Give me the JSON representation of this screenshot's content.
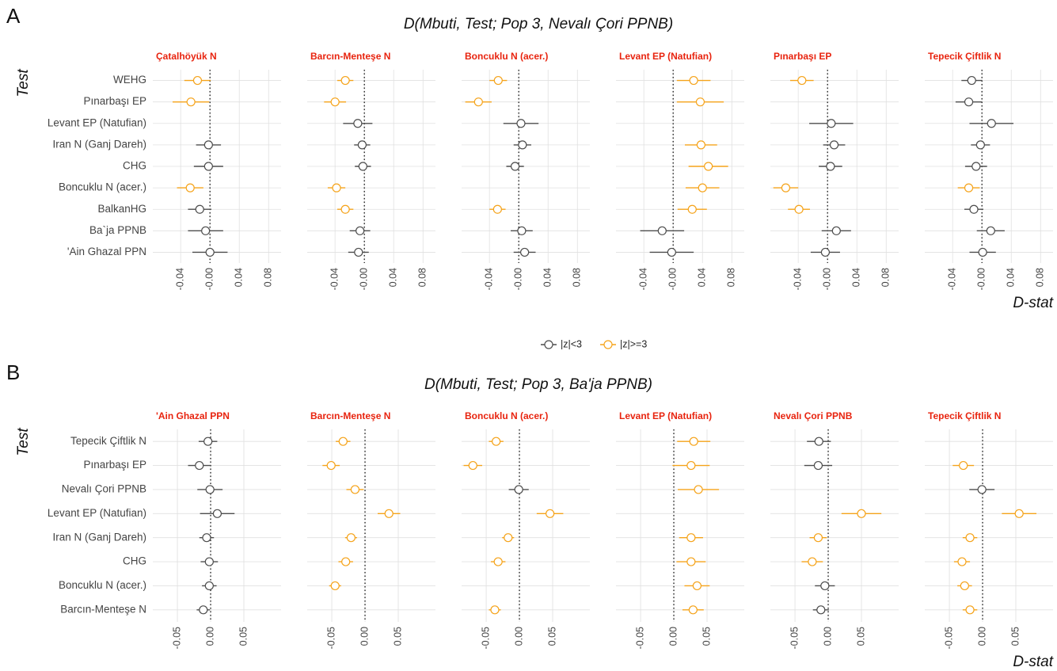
{
  "chart_data": [
    {
      "type": "dot-error",
      "panel_label": "A",
      "title": "D(Mbuti, Test; Pop 3, Nevalı Çori PPNB)",
      "y_label": "Test",
      "x_label": "D-stat",
      "categories": [
        "WEHG",
        "Pınarbaşı EP",
        "Levant EP (Natufian)",
        "Iran N (Ganj Dareh)",
        "CHG",
        "Boncuklu N (acer.)",
        "BalkanHG",
        "Ba`ja PPNB",
        "'Ain Ghazal PPN"
      ],
      "xlim": [
        -0.078,
        0.097
      ],
      "xticks": [
        -0.04,
        {
          "value": 0,
          "label": "-0.00"
        },
        0.04,
        0.08
      ],
      "reference_line": 0,
      "grid": true,
      "legend": [
        {
          "name": "|z|<3",
          "color": "#4d4d4d"
        },
        {
          "name": "|z|>=3",
          "color": "#f5a31a"
        }
      ],
      "facets": [
        {
          "title": "Çatalhöyük N",
          "values": [
            -0.017,
            -0.026,
            null,
            -0.002,
            -0.002,
            -0.027,
            -0.014,
            -0.006,
            0.0
          ],
          "errors": [
            0.018,
            0.025,
            null,
            0.017,
            0.02,
            0.018,
            0.016,
            0.024,
            0.024
          ],
          "significant": [
            true,
            true,
            null,
            false,
            false,
            true,
            false,
            false,
            false
          ]
        },
        {
          "title": "Barcın-Menteşe N",
          "values": [
            -0.026,
            -0.04,
            -0.009,
            -0.003,
            -0.002,
            -0.038,
            -0.026,
            -0.006,
            -0.008
          ],
          "errors": [
            0.011,
            0.015,
            0.02,
            0.011,
            0.011,
            0.012,
            0.011,
            0.014,
            0.014
          ],
          "significant": [
            true,
            true,
            false,
            false,
            false,
            true,
            true,
            false,
            false
          ]
        },
        {
          "title": "Boncuklu N (acer.)",
          "values": [
            -0.028,
            -0.055,
            0.003,
            0.005,
            -0.005,
            null,
            -0.029,
            0.004,
            0.008
          ],
          "errors": [
            0.012,
            0.018,
            0.024,
            0.012,
            0.012,
            null,
            0.011,
            0.015,
            0.015
          ],
          "significant": [
            true,
            true,
            false,
            false,
            false,
            null,
            true,
            false,
            false
          ]
        },
        {
          "title": "Levant EP (Natufian)",
          "values": [
            0.028,
            0.037,
            null,
            0.038,
            0.048,
            0.04,
            0.026,
            -0.015,
            -0.002
          ],
          "errors": [
            0.023,
            0.032,
            null,
            0.022,
            0.027,
            0.023,
            0.02,
            0.03,
            0.03
          ],
          "significant": [
            true,
            true,
            null,
            true,
            true,
            true,
            true,
            false,
            false
          ]
        },
        {
          "title": "Pınarbaşı EP",
          "values": [
            -0.035,
            null,
            0.005,
            0.009,
            0.004,
            -0.057,
            -0.039,
            0.012,
            -0.003
          ],
          "errors": [
            0.016,
            null,
            0.03,
            0.015,
            0.016,
            0.017,
            0.015,
            0.02,
            0.02
          ],
          "significant": [
            true,
            null,
            false,
            false,
            false,
            true,
            true,
            false,
            false
          ]
        },
        {
          "title": "Tepecik Çiftlik N",
          "values": [
            -0.014,
            -0.018,
            0.013,
            -0.002,
            -0.008,
            -0.018,
            -0.011,
            0.012,
            0.001
          ],
          "errors": [
            0.014,
            0.018,
            0.03,
            0.013,
            0.015,
            0.015,
            0.013,
            0.019,
            0.018
          ],
          "significant": [
            false,
            false,
            false,
            false,
            false,
            true,
            false,
            false,
            false
          ]
        }
      ]
    },
    {
      "type": "dot-error",
      "panel_label": "B",
      "title": "D(Mbuti, Test; Pop 3, Ba'ja PPNB)",
      "y_label": "Test",
      "x_label": "D-stat",
      "categories": [
        "Tepecik Çiftlik N",
        "Pınarbaşı EP",
        "Nevalı Çori PPNB",
        "Levant EP (Natufian)",
        "Iran N (Ganj Dareh)",
        "CHG",
        "Boncuklu N (acer.)",
        "Barcın-Menteşe N"
      ],
      "xlim": [
        -0.087,
        0.106
      ],
      "xticks": [
        -0.05,
        {
          "value": 0,
          "label": "0.00"
        },
        0.05
      ],
      "reference_line": 0,
      "grid": true,
      "facets": [
        {
          "title": "'Ain Ghazal PPN",
          "values": [
            -0.004,
            -0.017,
            -0.001,
            0.01,
            -0.006,
            -0.002,
            -0.002,
            -0.011
          ],
          "errors": [
            0.014,
            0.017,
            0.019,
            0.026,
            0.011,
            0.013,
            0.011,
            0.01
          ],
          "significant": [
            false,
            false,
            false,
            false,
            false,
            false,
            false,
            false
          ]
        },
        {
          "title": "Barcın-Menteşe N",
          "values": [
            -0.033,
            -0.051,
            -0.015,
            0.036,
            -0.021,
            -0.029,
            -0.045,
            null
          ],
          "errors": [
            0.011,
            0.013,
            0.013,
            0.017,
            0.009,
            0.011,
            0.009,
            null
          ],
          "significant": [
            true,
            true,
            true,
            true,
            true,
            true,
            true,
            null
          ]
        },
        {
          "title": "Boncuklu N (acer.)",
          "values": [
            -0.035,
            -0.07,
            -0.001,
            0.046,
            -0.017,
            -0.032,
            null,
            -0.037
          ],
          "errors": [
            0.011,
            0.014,
            0.015,
            0.02,
            0.009,
            0.011,
            null,
            0.009
          ],
          "significant": [
            true,
            true,
            false,
            true,
            true,
            true,
            null,
            true
          ]
        },
        {
          "title": "Levant EP (Natufian)",
          "values": [
            0.03,
            0.026,
            0.037,
            null,
            0.026,
            0.026,
            0.035,
            0.029
          ],
          "errors": [
            0.025,
            0.028,
            0.031,
            null,
            0.018,
            0.022,
            0.019,
            0.016
          ],
          "significant": [
            true,
            true,
            true,
            null,
            true,
            true,
            true,
            true
          ]
        },
        {
          "title": "Nevalı Çori PPNB",
          "values": [
            -0.014,
            -0.015,
            null,
            0.05,
            -0.015,
            -0.024,
            -0.005,
            -0.011
          ],
          "errors": [
            0.018,
            0.021,
            null,
            0.03,
            0.013,
            0.016,
            0.015,
            0.012
          ],
          "significant": [
            false,
            false,
            null,
            true,
            true,
            true,
            false,
            false
          ]
        },
        {
          "title": "Tepecik Çiftlik N",
          "values": [
            null,
            -0.029,
            -0.001,
            0.055,
            -0.019,
            -0.031,
            -0.027,
            -0.019
          ],
          "errors": [
            null,
            0.016,
            0.019,
            0.026,
            0.011,
            0.012,
            0.011,
            0.011
          ],
          "significant": [
            null,
            true,
            false,
            true,
            true,
            true,
            true,
            true
          ]
        }
      ]
    }
  ]
}
